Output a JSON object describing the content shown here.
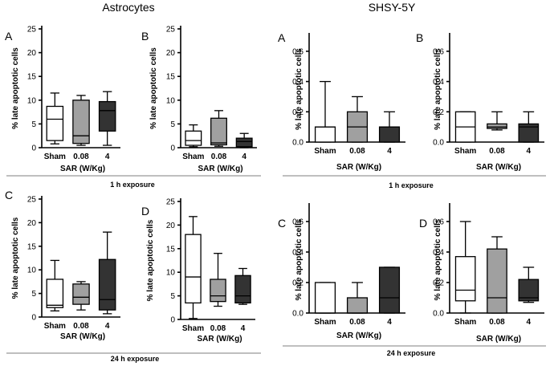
{
  "figure": {
    "titles": {
      "astrocytes": "Astrocytes",
      "shsy": "SHSY-5Y"
    },
    "captions": {
      "one_h": "1 h exposure",
      "twentyfour_h": "24 h exposure"
    },
    "box_colors": [
      "#ffffff",
      "#a0a0a0",
      "#333333"
    ]
  },
  "chart_data": [
    {
      "id": "astro-1h-A",
      "type": "box",
      "letter": "A",
      "categories": [
        "Sham",
        "0.08",
        "4"
      ],
      "ylabel": "% late apoptotic cells",
      "xlabel": "SAR (W/Kg)",
      "ylim": [
        0,
        25
      ],
      "yticks": [
        0,
        5,
        10,
        15,
        20,
        25
      ],
      "boxes": [
        {
          "min": 0.8,
          "q1": 1.5,
          "median": 6.0,
          "q3": 8.7,
          "max": 11.5
        },
        {
          "min": 0.5,
          "q1": 0.9,
          "median": 2.5,
          "q3": 10.0,
          "max": 11.0
        },
        {
          "min": 0.5,
          "q1": 3.5,
          "median": 7.8,
          "q3": 9.7,
          "max": 11.8
        }
      ]
    },
    {
      "id": "astro-1h-B",
      "type": "box",
      "letter": "B",
      "categories": [
        "Sham",
        "0.08",
        "4"
      ],
      "ylabel": "% late apoptotic cells",
      "xlabel": "SAR (W/Kg)",
      "ylim": [
        0,
        25
      ],
      "yticks": [
        0,
        5,
        10,
        15,
        20,
        25
      ],
      "boxes": [
        {
          "min": 0.2,
          "q1": 0.5,
          "median": 1.5,
          "q3": 3.5,
          "max": 4.8
        },
        {
          "min": 0.3,
          "q1": 0.6,
          "median": 1.0,
          "q3": 6.2,
          "max": 7.8
        },
        {
          "min": 0.0,
          "q1": 0.2,
          "median": 1.3,
          "q3": 2.0,
          "max": 3.0
        }
      ]
    },
    {
      "id": "shsy-1h-A",
      "type": "box",
      "letter": "A",
      "categories": [
        "Sham",
        "0.08",
        "4"
      ],
      "ylabel": "% late apoptotic cells",
      "xlabel": "SAR (W/Kg)",
      "ylim": [
        0,
        0.7
      ],
      "yticks": [
        0,
        0.2,
        0.4,
        0.6
      ],
      "boxes": [
        {
          "min": 0.0,
          "q1": 0.0,
          "median": 0.1,
          "q3": 0.1,
          "max": 0.4
        },
        {
          "min": 0.0,
          "q1": 0.0,
          "median": 0.1,
          "q3": 0.2,
          "max": 0.3
        },
        {
          "min": 0.0,
          "q1": 0.0,
          "median": 0.1,
          "q3": 0.1,
          "max": 0.2
        }
      ]
    },
    {
      "id": "shsy-1h-B",
      "type": "box",
      "letter": "B",
      "categories": [
        "Sham",
        "0.08",
        "4"
      ],
      "ylabel": "% late apoptotic cells",
      "xlabel": "SAR (W/Kg)",
      "ylim": [
        0,
        0.7
      ],
      "yticks": [
        0,
        0.2,
        0.4,
        0.6
      ],
      "boxes": [
        {
          "min": 0.0,
          "q1": 0.0,
          "median": 0.1,
          "q3": 0.2,
          "max": 0.2
        },
        {
          "min": 0.08,
          "q1": 0.09,
          "median": 0.1,
          "q3": 0.12,
          "max": 0.2
        },
        {
          "min": 0.0,
          "q1": 0.0,
          "median": 0.1,
          "q3": 0.12,
          "max": 0.2
        }
      ]
    },
    {
      "id": "astro-24h-C",
      "type": "box",
      "letter": "C",
      "categories": [
        "Sham",
        "0.08",
        "4"
      ],
      "ylabel": "% late apoptotic cells",
      "xlabel": "SAR (W/Kg)",
      "ylim": [
        0,
        25
      ],
      "yticks": [
        0,
        5,
        10,
        15,
        20,
        25
      ],
      "boxes": [
        {
          "min": 1.3,
          "q1": 2.0,
          "median": 2.5,
          "q3": 8.0,
          "max": 12.0
        },
        {
          "min": 1.5,
          "q1": 2.7,
          "median": 4.2,
          "q3": 7.0,
          "max": 7.5
        },
        {
          "min": 0.7,
          "q1": 1.5,
          "median": 3.7,
          "q3": 12.2,
          "max": 18.0
        }
      ]
    },
    {
      "id": "astro-24h-D",
      "type": "box",
      "letter": "D",
      "categories": [
        "Sham",
        "0.08",
        "4"
      ],
      "ylabel": "% late apoptotic cells",
      "xlabel": "SAR (W/Kg)",
      "ylim": [
        0,
        25
      ],
      "yticks": [
        0,
        5,
        10,
        15,
        20,
        25
      ],
      "boxes": [
        {
          "min": 0.2,
          "q1": 3.5,
          "median": 9.0,
          "q3": 18.0,
          "max": 21.8
        },
        {
          "min": 2.8,
          "q1": 3.8,
          "median": 5.0,
          "q3": 8.5,
          "max": 14.0
        },
        {
          "min": 3.2,
          "q1": 3.5,
          "median": 5.0,
          "q3": 9.3,
          "max": 10.8
        }
      ]
    },
    {
      "id": "shsy-24h-C",
      "type": "box",
      "letter": "C",
      "categories": [
        "Sham",
        "0.08",
        "4"
      ],
      "ylabel": "% late apoptotic cells",
      "xlabel": "SAR (W/Kg)",
      "ylim": [
        0,
        0.7
      ],
      "yticks": [
        0,
        0.2,
        0.4,
        0.6
      ],
      "boxes": [
        {
          "min": 0.0,
          "q1": 0.0,
          "median": 0.0,
          "q3": 0.2,
          "max": 0.2
        },
        {
          "min": 0.0,
          "q1": 0.0,
          "median": 0.0,
          "q3": 0.1,
          "max": 0.2
        },
        {
          "min": 0.0,
          "q1": 0.0,
          "median": 0.1,
          "q3": 0.3,
          "max": 0.3
        }
      ]
    },
    {
      "id": "shsy-24h-D",
      "type": "box",
      "letter": "D",
      "categories": [
        "Sham",
        "0.08",
        "4"
      ],
      "ylabel": "% late apoptotic cells",
      "xlabel": "SAR (W/Kg)",
      "ylim": [
        0,
        0.7
      ],
      "yticks": [
        0,
        0.2,
        0.4,
        0.6
      ],
      "boxes": [
        {
          "min": 0.0,
          "q1": 0.08,
          "median": 0.15,
          "q3": 0.37,
          "max": 0.6
        },
        {
          "min": 0.0,
          "q1": 0.0,
          "median": 0.1,
          "q3": 0.42,
          "max": 0.5
        },
        {
          "min": 0.07,
          "q1": 0.08,
          "median": 0.1,
          "q3": 0.22,
          "max": 0.3
        }
      ]
    }
  ]
}
